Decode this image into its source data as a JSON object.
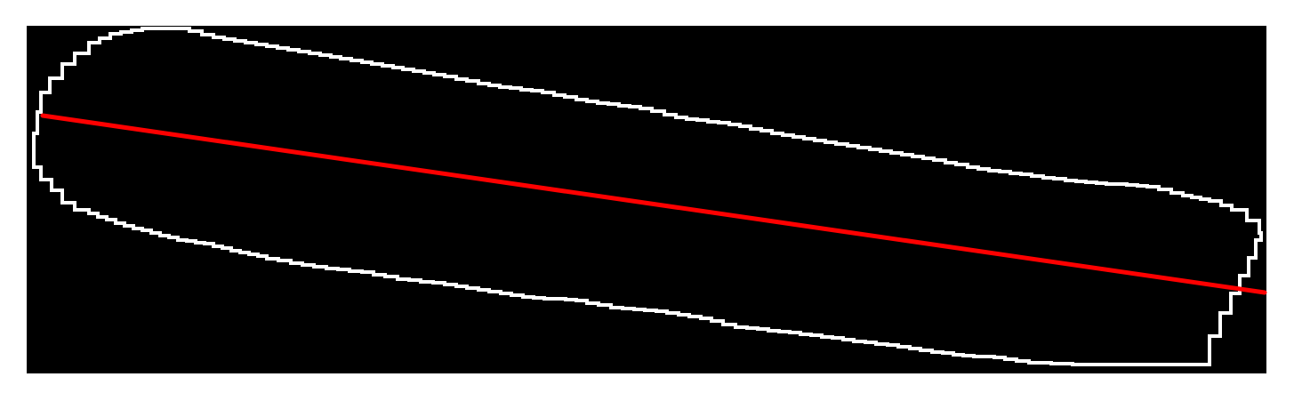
{
  "colors": {
    "page_background": "#ffffff",
    "canvas_background": "#000000",
    "contour": "#ffffff",
    "axis_line": "#ff0000"
  },
  "contour_style": "pixelated-outline",
  "axis_line_style": "solid-red-line"
}
